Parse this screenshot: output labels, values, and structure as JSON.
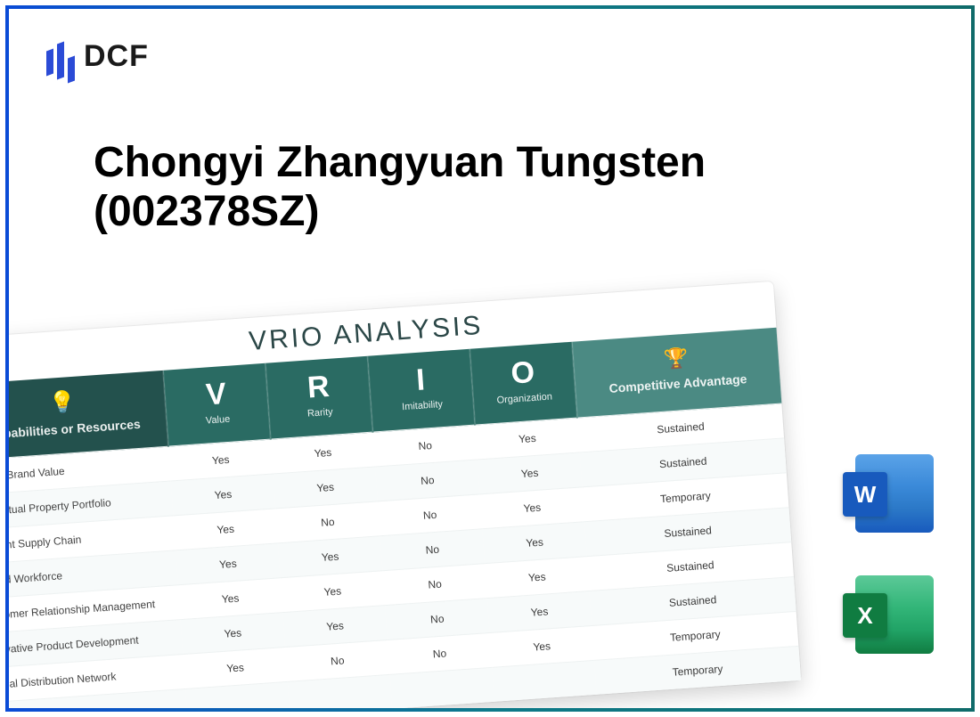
{
  "logo": {
    "text": "DCF"
  },
  "title_line1": "Chongyi Zhangyuan Tungsten",
  "title_line2": "(002378SZ)",
  "table": {
    "title": "VRIO ANALYSIS",
    "headers": {
      "capabilities": "Capabilities\nor Resources",
      "v": {
        "letter": "V",
        "label": "Value"
      },
      "r": {
        "letter": "R",
        "label": "Rarity"
      },
      "i": {
        "letter": "I",
        "label": "Imitability"
      },
      "o": {
        "letter": "O",
        "label": "Organization"
      },
      "advantage": "Competitive\nAdvantage"
    },
    "rows": [
      {
        "cap": "Strong Brand Value",
        "v": "Yes",
        "r": "Yes",
        "i": "No",
        "o": "Yes",
        "adv": "Sustained"
      },
      {
        "cap": "Intellectual Property Portfolio",
        "v": "Yes",
        "r": "Yes",
        "i": "No",
        "o": "Yes",
        "adv": "Sustained"
      },
      {
        "cap": "Efficient Supply Chain",
        "v": "Yes",
        "r": "No",
        "i": "No",
        "o": "Yes",
        "adv": "Temporary"
      },
      {
        "cap": "Skilled Workforce",
        "v": "Yes",
        "r": "Yes",
        "i": "No",
        "o": "Yes",
        "adv": "Sustained"
      },
      {
        "cap": "Customer Relationship Management",
        "v": "Yes",
        "r": "Yes",
        "i": "No",
        "o": "Yes",
        "adv": "Sustained"
      },
      {
        "cap": "Innovative Product Development",
        "v": "Yes",
        "r": "Yes",
        "i": "No",
        "o": "Yes",
        "adv": "Sustained"
      },
      {
        "cap": "Global Distribution Network",
        "v": "Yes",
        "r": "No",
        "i": "No",
        "o": "Yes",
        "adv": "Temporary"
      },
      {
        "cap": "",
        "v": "",
        "r": "",
        "i": "",
        "o": "",
        "adv": "Temporary"
      }
    ]
  },
  "icons": {
    "word": "W",
    "excel": "X"
  },
  "colors": {
    "border_grad_start": "#0a4bd6",
    "border_grad_end": "#0f6b6a",
    "header_dark": "#23514d",
    "header_mid": "#2a6b63",
    "header_light": "#4b8a83",
    "word": "#185abd",
    "excel": "#107c41"
  }
}
